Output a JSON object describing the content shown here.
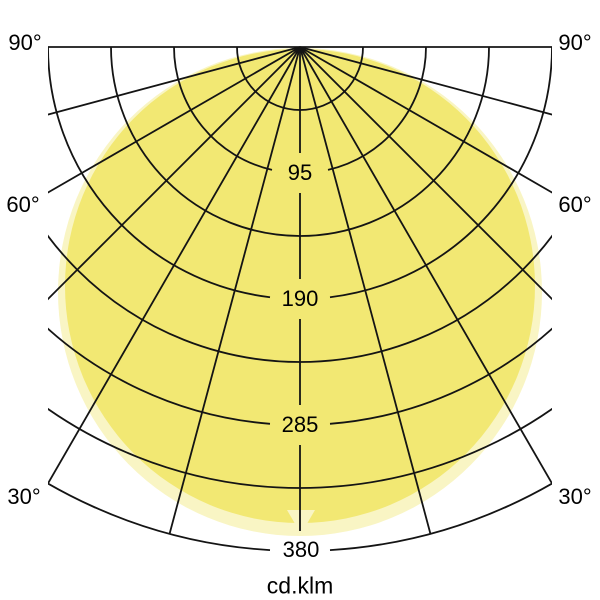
{
  "page": {
    "background": "#ffffff"
  },
  "colors": {
    "pale_yellow": "#f9f5c4",
    "bright_yellow": "#f2e873",
    "grid_line": "#141414",
    "text": "#000000"
  },
  "labels": {
    "angle_left_90": "90°",
    "angle_right_90": "90°",
    "angle_left_60": "60°",
    "angle_right_60": "60°",
    "angle_left_30": "30°",
    "angle_right_30": "30°",
    "tick_95": "95",
    "tick_190": "190",
    "tick_285": "285",
    "tick_380": "380",
    "unit": "cd.klm"
  },
  "chart_data": {
    "type": "area",
    "variant": "polar-photometric-luminous-intensity-distribution",
    "title": "",
    "unit_label": "cd.klm",
    "angle_range_deg": [
      -90,
      90
    ],
    "angle_grid_step_deg": 15,
    "angle_tick_labels_deg": [
      90,
      60,
      30
    ],
    "radial_ticks": [
      95,
      190,
      285,
      380
    ],
    "radial_grid_step": 47.5,
    "rlim": [
      0,
      380
    ],
    "grid": true,
    "legend": "none",
    "series": [
      {
        "name": "outer-pale-curve",
        "color": "#f9f5c4",
        "angles_deg": [
          0,
          15,
          30,
          45,
          60,
          75,
          90
        ],
        "values_cd_per_klm": [
          370,
          357,
          320,
          261,
          185,
          96,
          0
        ],
        "symmetric": true
      },
      {
        "name": "inner-bright-curve",
        "color": "#f2e873",
        "angles_deg": [
          0,
          15,
          30,
          45,
          60,
          75,
          90
        ],
        "values_cd_per_klm": [
          360,
          348,
          312,
          255,
          180,
          93,
          0
        ],
        "symmetric": true
      }
    ]
  }
}
